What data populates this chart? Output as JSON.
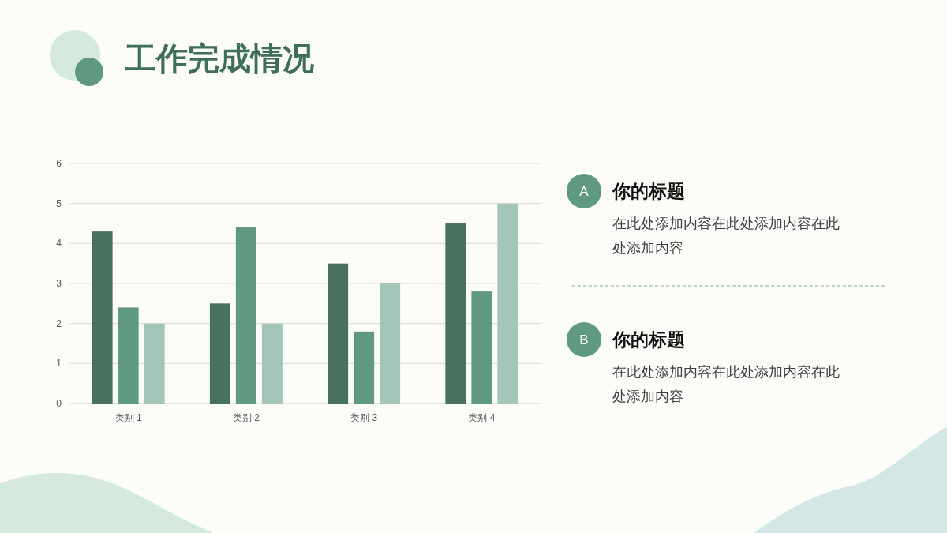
{
  "chart_data": [
    {
      "type": "bar",
      "title": "工作完成情况",
      "categories": [
        "类别 1",
        "类别 2",
        "类别 3",
        "类别 4"
      ],
      "series": [
        {
          "color": "#48725f",
          "values": [
            4.3,
            2.5,
            3.5,
            4.5
          ]
        },
        {
          "color": "#5f9a80",
          "values": [
            2.4,
            4.4,
            1.8,
            2.8
          ]
        },
        {
          "color": "#a3c6b8",
          "values": [
            2,
            2,
            3,
            5
          ]
        }
      ],
      "ylim": [
        0,
        6
      ],
      "yticks": [
        0,
        1,
        2,
        3,
        4,
        5,
        6
      ],
      "grid": "y"
    },
    {
      "type": "other",
      "annotations": [
        "A",
        "你的标题",
        "在此处添加内容在此处添加内容在此处添加内容",
        "B",
        "你的标题",
        "在此处添加内容在此处添加内容在此处添加内容"
      ]
    }
  ]
}
